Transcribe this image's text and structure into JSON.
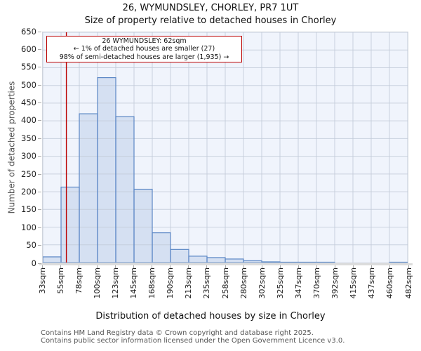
{
  "title": "26, WYMUNDSLEY, CHORLEY, PR7 1UT",
  "subtitle": "Size of property relative to detached houses in Chorley",
  "annotation": {
    "line1": "26 WYMUNDSLEY: 62sqm",
    "line2": "← 1% of detached houses are smaller (27)",
    "line3": "98% of semi-detached houses are larger (1,935) →"
  },
  "footer": {
    "line1": "Contains HM Land Registry data © Crown copyright and database right 2025.",
    "line2": "Contains public sector information licensed under the Open Government Licence v3.0."
  },
  "chart_data": {
    "type": "bar",
    "title": "26, WYMUNDSLEY, CHORLEY, PR7 1UT",
    "subtitle": "Size of property relative to detached houses in Chorley",
    "xlabel": "Distribution of detached houses by size in Chorley",
    "ylabel": "Number of detached properties",
    "bin_edges_sqm": [
      33,
      55,
      78,
      100,
      123,
      145,
      168,
      190,
      213,
      235,
      258,
      280,
      302,
      325,
      347,
      370,
      392,
      415,
      437,
      460,
      482
    ],
    "x_tick_labels": [
      "33sqm",
      "55sqm",
      "78sqm",
      "100sqm",
      "123sqm",
      "145sqm",
      "168sqm",
      "190sqm",
      "213sqm",
      "235sqm",
      "258sqm",
      "280sqm",
      "302sqm",
      "325sqm",
      "347sqm",
      "370sqm",
      "392sqm",
      "415sqm",
      "437sqm",
      "460sqm",
      "482sqm"
    ],
    "values": [
      16,
      213,
      420,
      522,
      412,
      207,
      84,
      37,
      18,
      14,
      10,
      5,
      2,
      1,
      1,
      1,
      0,
      0,
      0,
      1
    ],
    "ylim": [
      0,
      650
    ],
    "ytick_step": 50,
    "grid": true,
    "legend": "none",
    "marker_value_sqm": 62,
    "colors": {
      "bar_fill": "#d5e0f2",
      "bar_border": "#5b87c5",
      "marker_line": "#bb0000",
      "grid": "#c3cbd9",
      "plot_bg": "#f0f4fc",
      "annotation_border": "#bb0000"
    }
  }
}
